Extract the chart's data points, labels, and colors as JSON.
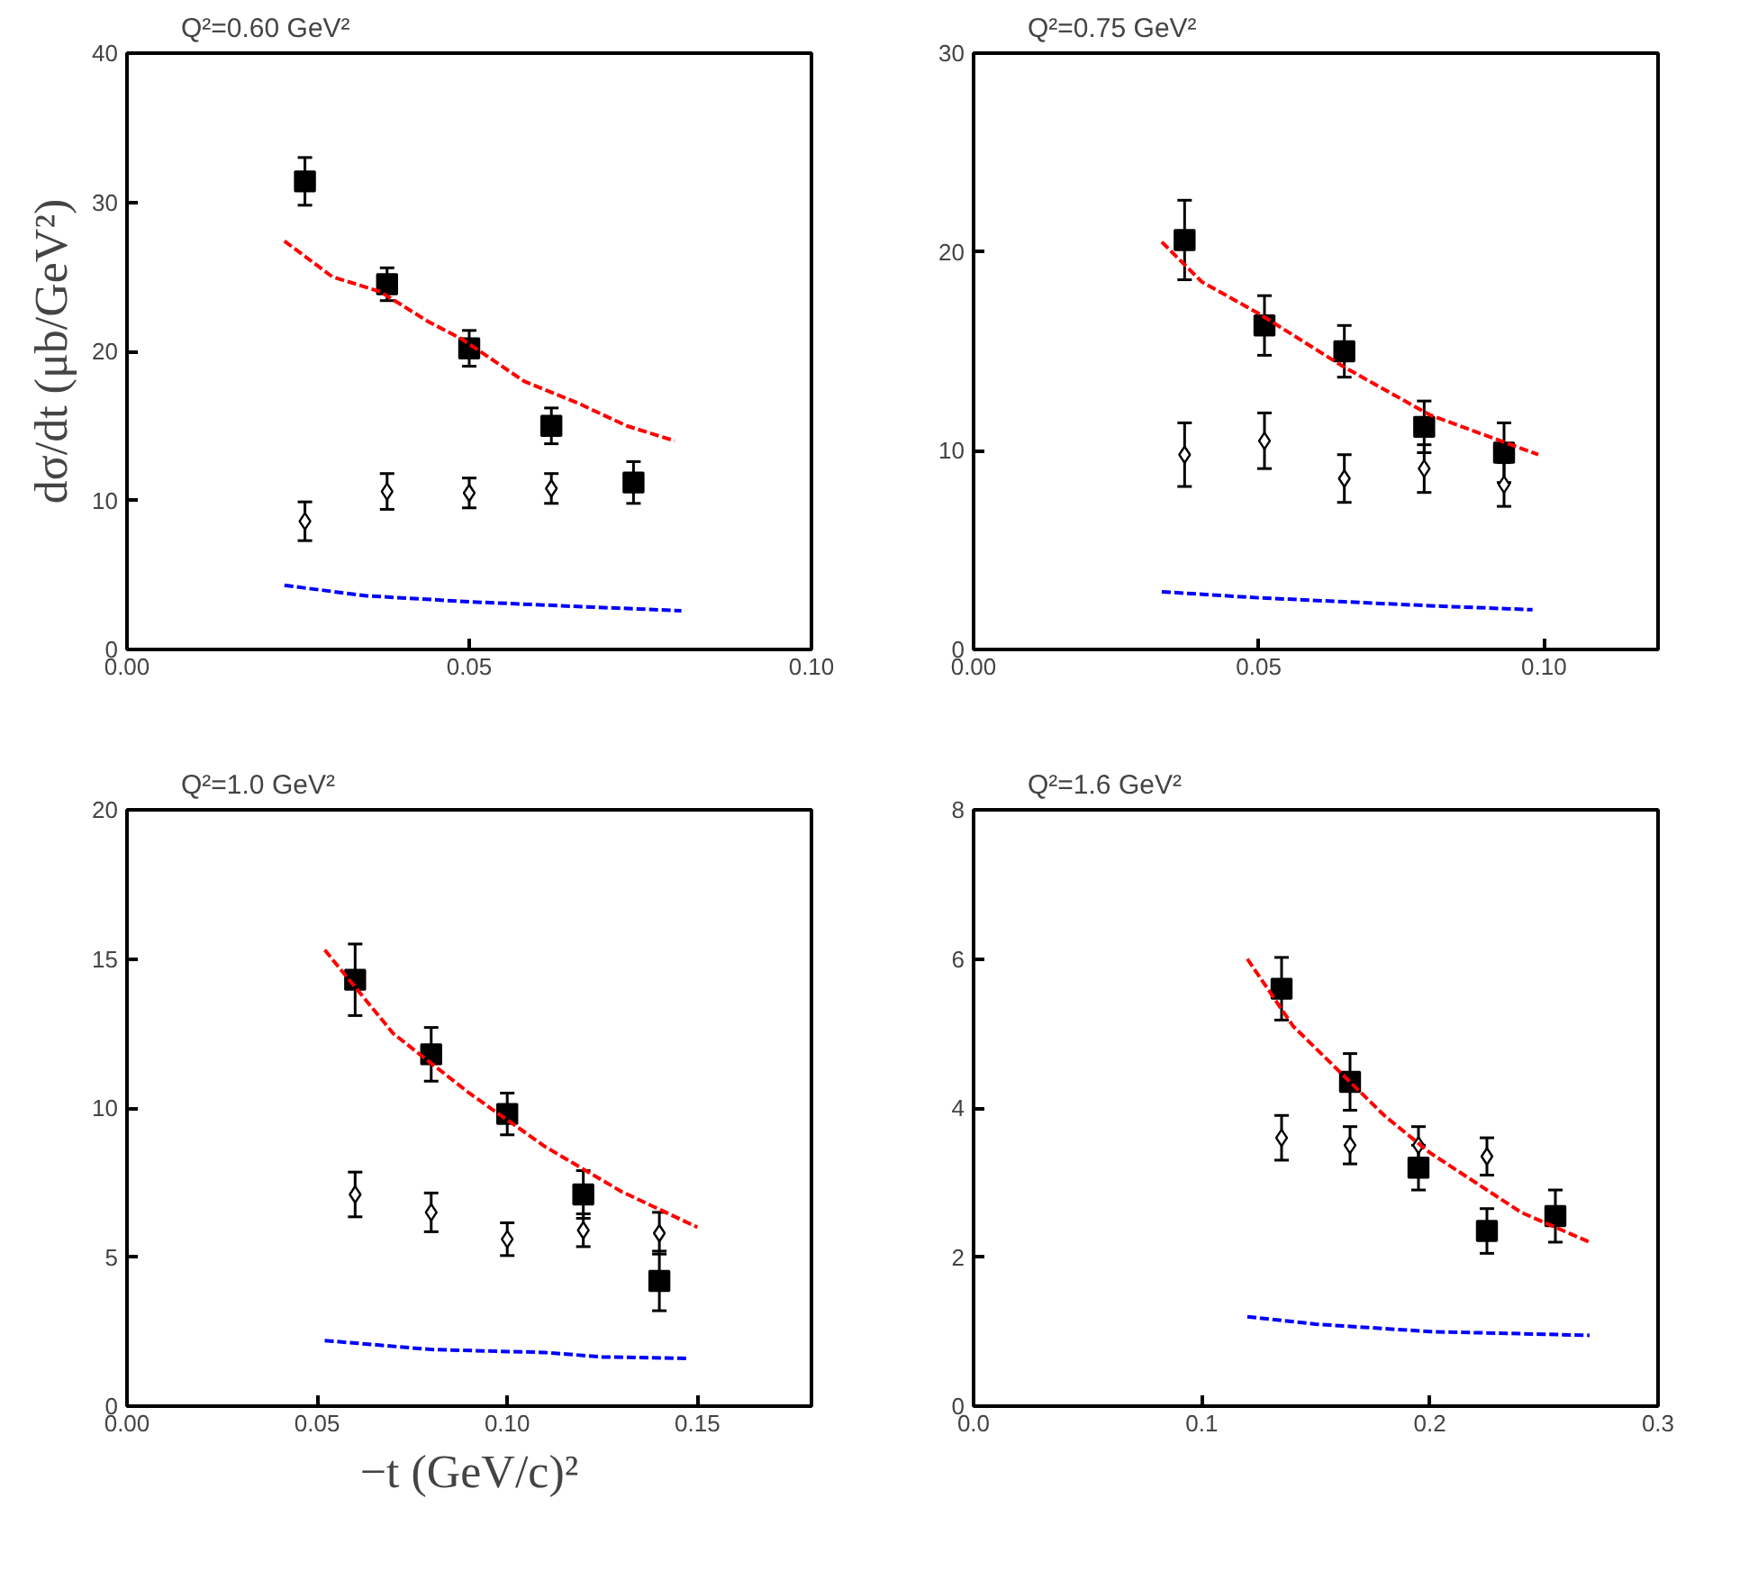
{
  "chart_data": [
    {
      "type": "scatter",
      "title": "Q²=0.60 GeV²",
      "ylabel": "dσ/dt (μb/GeV²)",
      "xlim": [
        0,
        0.1
      ],
      "ylim": [
        0,
        40
      ],
      "xticks": [
        {
          "value": 0,
          "label": "0.00"
        },
        {
          "value": 0.05,
          "label": "0.05"
        },
        {
          "value": 0.1,
          "label": "0.10"
        }
      ],
      "yticks": [
        0,
        10,
        20,
        30,
        40
      ],
      "grid": false,
      "series": [
        {
          "marker": "square",
          "color": "#000000",
          "x": [
            0.026,
            0.038,
            0.05,
            0.062,
            0.074
          ],
          "values": [
            31.4,
            24.5,
            20.2,
            15.0,
            11.2
          ],
          "errors": [
            1.6,
            1.1,
            1.2,
            1.2,
            1.4
          ]
        },
        {
          "marker": "diamond",
          "color": "#000000",
          "x": [
            0.026,
            0.038,
            0.05,
            0.062
          ],
          "values": [
            8.6,
            10.6,
            10.5,
            10.8
          ],
          "errors": [
            1.3,
            1.2,
            1.0,
            1.0
          ]
        },
        {
          "type": "line",
          "line_style": "dashed",
          "color": "#ff0000",
          "x": [
            0.023,
            0.03,
            0.037,
            0.044,
            0.049,
            0.058,
            0.066,
            0.073,
            0.08
          ],
          "values": [
            27.4,
            25.0,
            24.0,
            22.0,
            20.8,
            18.0,
            16.5,
            15.0,
            14.0
          ]
        },
        {
          "type": "line",
          "line_style": "dashed",
          "color": "#0000ff",
          "x": [
            0.023,
            0.035,
            0.05,
            0.065,
            0.081
          ],
          "values": [
            4.3,
            3.6,
            3.2,
            2.9,
            2.6
          ]
        }
      ]
    },
    {
      "type": "scatter",
      "title": "Q²=0.75 GeV²",
      "xlim": [
        0,
        0.12
      ],
      "ylim": [
        0,
        30
      ],
      "xticks": [
        {
          "value": 0,
          "label": "0.00"
        },
        {
          "value": 0.05,
          "label": "0.05"
        },
        {
          "value": 0.1,
          "label": "0.10"
        }
      ],
      "yticks": [
        0,
        10,
        20,
        30
      ],
      "grid": false,
      "series": [
        {
          "marker": "square",
          "color": "#000000",
          "x": [
            0.037,
            0.051,
            0.065,
            0.079,
            0.093
          ],
          "values": [
            20.6,
            16.3,
            15.0,
            11.2,
            9.9
          ],
          "errors": [
            2.0,
            1.5,
            1.3,
            1.3,
            1.5
          ]
        },
        {
          "marker": "diamond",
          "color": "#000000",
          "x": [
            0.037,
            0.051,
            0.065,
            0.079,
            0.093
          ],
          "values": [
            9.8,
            10.5,
            8.6,
            9.1,
            8.3
          ],
          "errors": [
            1.6,
            1.4,
            1.2,
            1.2,
            1.1
          ]
        },
        {
          "type": "line",
          "line_style": "dashed",
          "color": "#ff0000",
          "x": [
            0.033,
            0.04,
            0.05,
            0.065,
            0.08,
            0.099
          ],
          "values": [
            20.5,
            18.5,
            16.9,
            14.2,
            11.8,
            9.8
          ]
        },
        {
          "type": "line",
          "line_style": "dashed",
          "color": "#0000ff",
          "x": [
            0.033,
            0.05,
            0.065,
            0.08,
            0.098
          ],
          "values": [
            2.9,
            2.6,
            2.4,
            2.2,
            2.0
          ]
        }
      ]
    },
    {
      "type": "scatter",
      "title": "Q²=1.0 GeV²",
      "xlabel": "−t (GeV/c)²",
      "xlim": [
        0,
        0.18
      ],
      "ylim": [
        0,
        20
      ],
      "xticks": [
        {
          "value": 0,
          "label": "0.00"
        },
        {
          "value": 0.05,
          "label": "0.05"
        },
        {
          "value": 0.1,
          "label": "0.10"
        },
        {
          "value": 0.15,
          "label": "0.15"
        }
      ],
      "yticks": [
        0,
        5,
        10,
        15,
        20
      ],
      "grid": false,
      "series": [
        {
          "marker": "square",
          "color": "#000000",
          "x": [
            0.06,
            0.08,
            0.1,
            0.12,
            0.14
          ],
          "values": [
            14.3,
            11.8,
            9.8,
            7.1,
            4.2
          ],
          "errors": [
            1.2,
            0.9,
            0.7,
            0.8,
            1.0
          ]
        },
        {
          "marker": "diamond",
          "color": "#000000",
          "x": [
            0.06,
            0.08,
            0.1,
            0.12,
            0.14
          ],
          "values": [
            7.1,
            6.5,
            5.6,
            5.9,
            5.8
          ],
          "errors": [
            0.75,
            0.65,
            0.55,
            0.55,
            0.7
          ]
        },
        {
          "type": "line",
          "line_style": "dashed",
          "color": "#ff0000",
          "x": [
            0.052,
            0.07,
            0.09,
            0.11,
            0.13,
            0.15
          ],
          "values": [
            15.3,
            12.5,
            10.5,
            8.7,
            7.2,
            6.0
          ]
        },
        {
          "type": "line",
          "line_style": "dashed",
          "color": "#0000ff",
          "x": [
            0.052,
            0.08,
            0.11,
            0.125,
            0.148
          ],
          "values": [
            2.2,
            1.9,
            1.8,
            1.65,
            1.6
          ]
        }
      ]
    },
    {
      "type": "scatter",
      "title": "Q²=1.6 GeV²",
      "xlim": [
        0,
        0.3
      ],
      "ylim": [
        0,
        8
      ],
      "xticks": [
        {
          "value": 0,
          "label": "0.0"
        },
        {
          "value": 0.1,
          "label": "0.1"
        },
        {
          "value": 0.2,
          "label": "0.2"
        },
        {
          "value": 0.3,
          "label": "0.3"
        }
      ],
      "yticks": [
        0,
        2,
        4,
        6,
        8
      ],
      "grid": false,
      "series": [
        {
          "marker": "square",
          "color": "#000000",
          "x": [
            0.135,
            0.165,
            0.195,
            0.225,
            0.255
          ],
          "values": [
            5.6,
            4.35,
            3.2,
            2.35,
            2.55
          ],
          "errors": [
            0.42,
            0.38,
            0.3,
            0.3,
            0.35
          ]
        },
        {
          "marker": "diamond",
          "color": "#000000",
          "x": [
            0.135,
            0.165,
            0.195,
            0.225
          ],
          "values": [
            3.6,
            3.5,
            3.5,
            3.35
          ],
          "errors": [
            0.3,
            0.25,
            0.25,
            0.25
          ]
        },
        {
          "type": "line",
          "line_style": "dashed",
          "color": "#ff0000",
          "x": [
            0.12,
            0.14,
            0.16,
            0.18,
            0.2,
            0.22,
            0.24,
            0.27
          ],
          "values": [
            6.0,
            5.1,
            4.5,
            3.9,
            3.4,
            3.0,
            2.6,
            2.2
          ]
        },
        {
          "type": "line",
          "line_style": "dashed",
          "color": "#0000ff",
          "x": [
            0.12,
            0.15,
            0.2,
            0.27
          ],
          "values": [
            1.2,
            1.1,
            1.0,
            0.95
          ]
        }
      ]
    }
  ]
}
